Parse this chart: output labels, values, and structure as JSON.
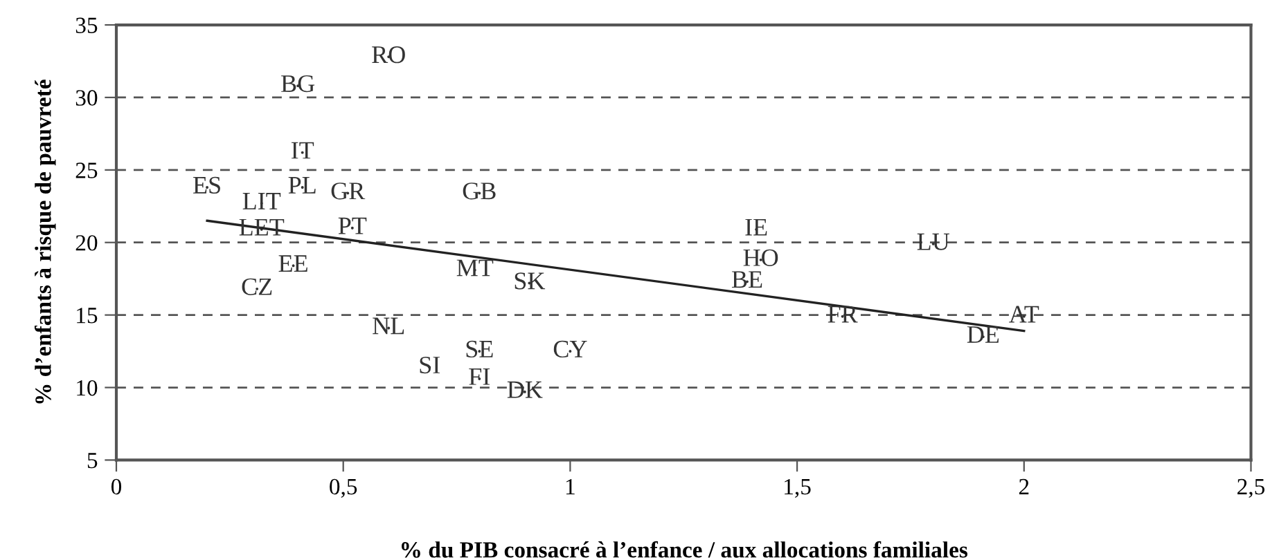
{
  "chart_data": {
    "type": "scatter",
    "xlabel": "% du PIB consacré à l’enfance / aux allocations familiales",
    "ylabel": "% d’enfants à risque de pauvreté",
    "xlim": [
      0,
      2.5
    ],
    "ylim": [
      5,
      35
    ],
    "xticks": [
      0,
      {
        "value": 0.5,
        "label": "0,5"
      },
      1,
      {
        "value": 1.5,
        "label": "1,5"
      },
      2,
      {
        "value": 2.5,
        "label": "2,5"
      }
    ],
    "yticks": [
      5,
      10,
      15,
      20,
      25,
      30,
      35
    ],
    "grid": "y",
    "legend": false,
    "series": [
      {
        "color": "#333333",
        "x": [
          0.6,
          0.4,
          0.41,
          0.2,
          0.41,
          0.51,
          0.8,
          0.32,
          0.32,
          0.52,
          0.39,
          0.31,
          0.79,
          0.91,
          0.6,
          0.8,
          0.69,
          1.0,
          0.8,
          0.9,
          1.41,
          1.42,
          1.39,
          1.8,
          1.6,
          2.0,
          1.91
        ],
        "values": [
          32.8,
          30.8,
          26.2,
          23.8,
          23.8,
          23.4,
          23.4,
          22.7,
          20.9,
          21.0,
          18.4,
          16.8,
          18.1,
          17.2,
          14.1,
          12.5,
          11.4,
          12.5,
          10.6,
          9.7,
          20.9,
          18.8,
          17.3,
          19.9,
          14.9,
          14.9,
          13.5
        ],
        "value_labels": [
          "RO",
          "BG",
          "IT",
          "ES",
          "PL",
          "GR",
          "GB",
          "LIT",
          "LET",
          "PT",
          "EE",
          "CZ",
          "MT",
          "SK",
          "NL",
          "SE",
          "SI",
          "CY",
          "FI",
          "DK",
          "IE",
          "HO",
          "BE",
          "LU",
          "FR",
          "AT",
          "DE"
        ]
      },
      {
        "type": "line",
        "color": "#222222",
        "line_style": "solid",
        "x": [
          0.2,
          2.0
        ],
        "values": [
          21.5,
          13.9
        ]
      }
    ]
  }
}
